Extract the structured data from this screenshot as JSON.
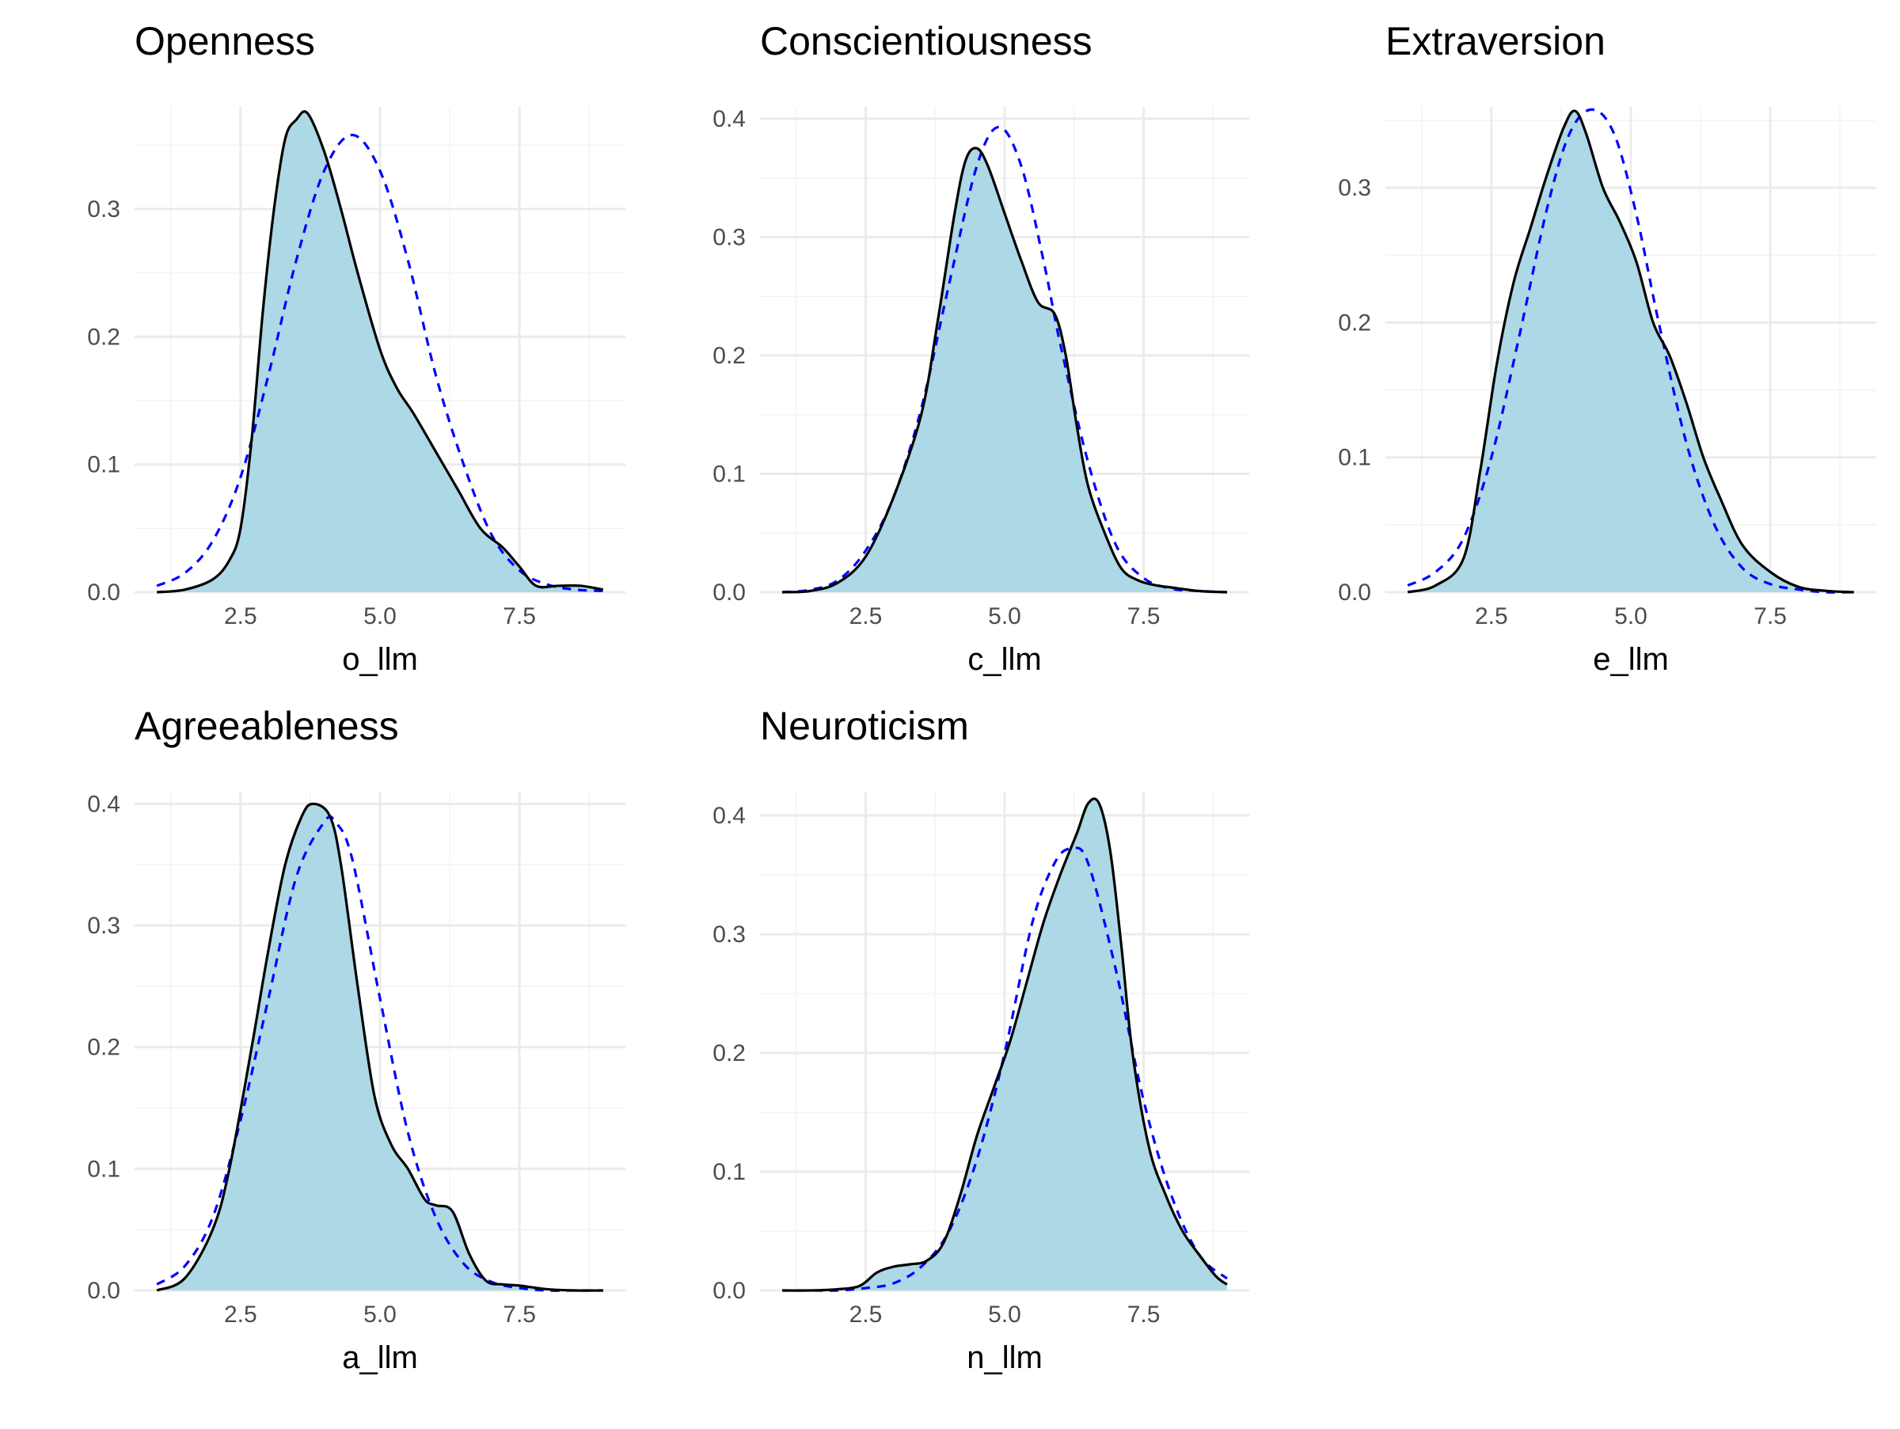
{
  "chart_data": [
    {
      "type": "area",
      "title": "Openness",
      "xlabel": "o_llm",
      "ylabel": "",
      "xlim": [
        0.6,
        9.4
      ],
      "ylim": [
        0,
        0.38
      ],
      "x_ticks": [
        2.5,
        5.0,
        7.5
      ],
      "x_tick_labels": [
        "2.5",
        "5.0",
        "7.5"
      ],
      "y_ticks": [
        0,
        0.1,
        0.2,
        0.3
      ],
      "y_tick_labels": [
        "0.0",
        "0.1",
        "0.2",
        "0.3"
      ],
      "grid": true,
      "series": [
        {
          "style": "density (filled, solid black)",
          "color": "#000000",
          "fill": "#add8e6",
          "x": [
            1.0,
            1.5,
            2.0,
            2.3,
            2.5,
            2.7,
            2.9,
            3.1,
            3.3,
            3.5,
            3.7,
            4.0,
            4.3,
            4.6,
            5.0,
            5.3,
            5.6,
            6.0,
            6.4,
            6.8,
            7.2,
            7.5,
            7.8,
            8.2,
            8.6,
            9.0
          ],
          "y": [
            0.0,
            0.002,
            0.01,
            0.025,
            0.05,
            0.12,
            0.22,
            0.3,
            0.355,
            0.37,
            0.375,
            0.345,
            0.3,
            0.25,
            0.19,
            0.16,
            0.14,
            0.11,
            0.08,
            0.05,
            0.035,
            0.02,
            0.005,
            0.005,
            0.005,
            0.002
          ]
        },
        {
          "style": "normal (dashed blue)",
          "color": "#0000ff",
          "x": [
            1.0,
            1.5,
            2.0,
            2.5,
            3.0,
            3.5,
            4.0,
            4.5,
            5.0,
            5.5,
            6.0,
            6.5,
            7.0,
            7.5,
            8.0,
            8.5,
            9.0
          ],
          "y": [
            0.005,
            0.015,
            0.04,
            0.09,
            0.17,
            0.26,
            0.33,
            0.358,
            0.33,
            0.26,
            0.17,
            0.1,
            0.045,
            0.017,
            0.006,
            0.002,
            0.001
          ]
        }
      ]
    },
    {
      "type": "area",
      "title": "Conscientiousness",
      "xlabel": "c_llm",
      "ylabel": "",
      "xlim": [
        0.6,
        9.4
      ],
      "ylim": [
        0,
        0.41
      ],
      "x_ticks": [
        2.5,
        5.0,
        7.5
      ],
      "x_tick_labels": [
        "2.5",
        "5.0",
        "7.5"
      ],
      "y_ticks": [
        0,
        0.1,
        0.2,
        0.3,
        0.4
      ],
      "y_tick_labels": [
        "0.0",
        "0.1",
        "0.2",
        "0.3",
        "0.4"
      ],
      "grid": true,
      "series": [
        {
          "style": "density (filled, solid black)",
          "color": "#000000",
          "fill": "#add8e6",
          "x": [
            1.0,
            1.5,
            2.0,
            2.5,
            3.0,
            3.5,
            3.8,
            4.1,
            4.3,
            4.5,
            4.7,
            5.0,
            5.3,
            5.6,
            5.9,
            6.1,
            6.3,
            6.5,
            6.8,
            7.1,
            7.4,
            7.7,
            8.0,
            8.5,
            9.0
          ],
          "y": [
            0.0,
            0.001,
            0.008,
            0.03,
            0.08,
            0.15,
            0.23,
            0.32,
            0.365,
            0.375,
            0.36,
            0.32,
            0.28,
            0.245,
            0.235,
            0.2,
            0.14,
            0.09,
            0.05,
            0.02,
            0.01,
            0.006,
            0.004,
            0.001,
            0.0
          ]
        },
        {
          "style": "normal (dashed blue)",
          "color": "#0000ff",
          "x": [
            1.0,
            1.5,
            2.0,
            2.5,
            3.0,
            3.5,
            4.0,
            4.5,
            4.9,
            5.3,
            5.7,
            6.0,
            6.5,
            7.0,
            7.5,
            8.0,
            8.5,
            9.0
          ],
          "y": [
            0.0,
            0.002,
            0.01,
            0.035,
            0.08,
            0.155,
            0.26,
            0.36,
            0.393,
            0.36,
            0.28,
            0.21,
            0.11,
            0.04,
            0.012,
            0.003,
            0.001,
            0.0
          ]
        }
      ]
    },
    {
      "type": "area",
      "title": "Extraversion",
      "xlabel": "e_llm",
      "ylabel": "",
      "xlim": [
        0.6,
        9.4
      ],
      "ylim": [
        0,
        0.36
      ],
      "x_ticks": [
        2.5,
        5.0,
        7.5
      ],
      "x_tick_labels": [
        "2.5",
        "5.0",
        "7.5"
      ],
      "y_ticks": [
        0,
        0.1,
        0.2,
        0.3
      ],
      "y_tick_labels": [
        "0.0",
        "0.1",
        "0.2",
        "0.3"
      ],
      "grid": true,
      "series": [
        {
          "style": "density (filled, solid black)",
          "color": "#000000",
          "fill": "#add8e6",
          "x": [
            1.0,
            1.5,
            2.0,
            2.3,
            2.6,
            2.9,
            3.2,
            3.5,
            3.8,
            4.0,
            4.2,
            4.5,
            4.8,
            5.1,
            5.4,
            5.7,
            6.0,
            6.3,
            6.6,
            7.0,
            7.5,
            8.0,
            8.5,
            9.0
          ],
          "y": [
            0.0,
            0.005,
            0.025,
            0.09,
            0.17,
            0.23,
            0.27,
            0.31,
            0.345,
            0.357,
            0.34,
            0.3,
            0.275,
            0.245,
            0.2,
            0.175,
            0.14,
            0.1,
            0.07,
            0.035,
            0.015,
            0.004,
            0.001,
            0.0
          ]
        },
        {
          "style": "normal (dashed blue)",
          "color": "#0000ff",
          "x": [
            1.0,
            1.5,
            2.0,
            2.5,
            3.0,
            3.5,
            3.9,
            4.3,
            4.7,
            5.1,
            5.5,
            6.0,
            6.5,
            7.0,
            7.5,
            8.0,
            8.5,
            9.0
          ],
          "y": [
            0.005,
            0.015,
            0.04,
            0.1,
            0.19,
            0.285,
            0.34,
            0.358,
            0.34,
            0.28,
            0.2,
            0.11,
            0.05,
            0.018,
            0.006,
            0.002,
            0.0,
            0.0
          ]
        }
      ]
    },
    {
      "type": "area",
      "title": "Agreeableness",
      "xlabel": "a_llm",
      "ylabel": "",
      "xlim": [
        0.6,
        9.4
      ],
      "ylim": [
        0,
        0.41
      ],
      "x_ticks": [
        2.5,
        5.0,
        7.5
      ],
      "x_tick_labels": [
        "2.5",
        "5.0",
        "7.5"
      ],
      "y_ticks": [
        0,
        0.1,
        0.2,
        0.3,
        0.4
      ],
      "y_tick_labels": [
        "0.0",
        "0.1",
        "0.2",
        "0.3",
        "0.4"
      ],
      "grid": true,
      "series": [
        {
          "style": "density (filled, solid black)",
          "color": "#000000",
          "fill": "#add8e6",
          "x": [
            1.0,
            1.5,
            2.0,
            2.3,
            2.7,
            3.0,
            3.3,
            3.6,
            3.8,
            4.1,
            4.3,
            4.6,
            4.9,
            5.2,
            5.5,
            5.8,
            6.0,
            6.3,
            6.6,
            6.9,
            7.2,
            7.5,
            8.0,
            8.5,
            9.0
          ],
          "y": [
            0.0,
            0.01,
            0.05,
            0.1,
            0.2,
            0.28,
            0.35,
            0.39,
            0.4,
            0.39,
            0.35,
            0.25,
            0.16,
            0.12,
            0.1,
            0.075,
            0.07,
            0.065,
            0.03,
            0.008,
            0.005,
            0.004,
            0.001,
            0.0,
            0.0
          ]
        },
        {
          "style": "normal (dashed blue)",
          "color": "#0000ff",
          "x": [
            1.0,
            1.5,
            2.0,
            2.5,
            3.0,
            3.5,
            4.0,
            4.2,
            4.5,
            5.0,
            5.5,
            6.0,
            6.5,
            7.0,
            7.5,
            8.0,
            8.5,
            9.0
          ],
          "y": [
            0.005,
            0.02,
            0.06,
            0.14,
            0.24,
            0.34,
            0.385,
            0.385,
            0.355,
            0.24,
            0.13,
            0.06,
            0.022,
            0.007,
            0.002,
            0.0,
            0.0,
            0.0
          ]
        }
      ]
    },
    {
      "type": "area",
      "title": "Neuroticism",
      "xlabel": "n_llm",
      "ylabel": "",
      "xlim": [
        0.6,
        9.4
      ],
      "ylim": [
        0,
        0.42
      ],
      "x_ticks": [
        2.5,
        5.0,
        7.5
      ],
      "x_tick_labels": [
        "2.5",
        "5.0",
        "7.5"
      ],
      "y_ticks": [
        0,
        0.1,
        0.2,
        0.3,
        0.4
      ],
      "y_tick_labels": [
        "0.0",
        "0.1",
        "0.2",
        "0.3",
        "0.4"
      ],
      "grid": true,
      "series": [
        {
          "style": "density (filled, solid black)",
          "color": "#000000",
          "fill": "#add8e6",
          "x": [
            1.0,
            1.5,
            2.0,
            2.4,
            2.7,
            3.0,
            3.3,
            3.6,
            3.9,
            4.2,
            4.5,
            4.8,
            5.1,
            5.4,
            5.7,
            6.0,
            6.3,
            6.5,
            6.7,
            6.9,
            7.1,
            7.3,
            7.6,
            7.9,
            8.2,
            8.5,
            8.8,
            9.0
          ],
          "y": [
            0.0,
            0.0,
            0.001,
            0.004,
            0.015,
            0.02,
            0.022,
            0.025,
            0.04,
            0.08,
            0.13,
            0.17,
            0.21,
            0.26,
            0.31,
            0.35,
            0.385,
            0.41,
            0.41,
            0.37,
            0.29,
            0.2,
            0.12,
            0.08,
            0.05,
            0.03,
            0.012,
            0.005
          ]
        },
        {
          "style": "normal (dashed blue)",
          "color": "#0000ff",
          "x": [
            1.0,
            1.5,
            2.0,
            2.5,
            3.0,
            3.5,
            4.0,
            4.5,
            5.0,
            5.5,
            5.9,
            6.2,
            6.5,
            7.0,
            7.5,
            8.0,
            8.5,
            9.0
          ],
          "y": [
            0.0,
            0.0,
            0.0,
            0.002,
            0.006,
            0.02,
            0.05,
            0.11,
            0.2,
            0.31,
            0.36,
            0.372,
            0.36,
            0.27,
            0.16,
            0.08,
            0.03,
            0.01
          ]
        }
      ]
    }
  ]
}
